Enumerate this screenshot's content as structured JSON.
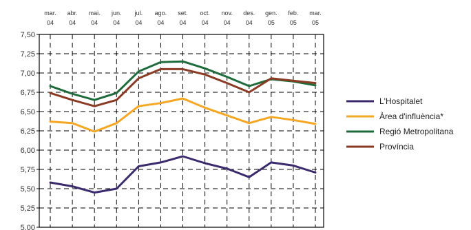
{
  "chart_data": {
    "type": "line",
    "title": "",
    "xlabel": "",
    "ylabel": "",
    "ylim": [
      5.0,
      7.5
    ],
    "yticks": [
      "7,50",
      "7,25",
      "7,00",
      "6,75",
      "6,50",
      "6,25",
      "6,00",
      "5,75",
      "5,50",
      "5,25",
      "5,00"
    ],
    "ytick_values": [
      7.5,
      7.25,
      7.0,
      6.75,
      6.5,
      6.25,
      6.0,
      5.75,
      5.5,
      5.25,
      5.0
    ],
    "categories": [
      [
        "mar.",
        "04"
      ],
      [
        "abr.",
        "04"
      ],
      [
        "mai.",
        "04"
      ],
      [
        "jun.",
        "04"
      ],
      [
        "jul.",
        "04"
      ],
      [
        "ago.",
        "04"
      ],
      [
        "set.",
        "04"
      ],
      [
        "oct.",
        "04"
      ],
      [
        "nov.",
        "04"
      ],
      [
        "des.",
        "04"
      ],
      [
        "gen.",
        "05"
      ],
      [
        "feb.",
        "05"
      ],
      [
        "mar.",
        "05"
      ]
    ],
    "grid": true,
    "legend_position": "right",
    "series": [
      {
        "name": "L'Hospitalet",
        "color": "#3c2a6e",
        "values": [
          5.58,
          5.53,
          5.45,
          5.5,
          5.79,
          5.84,
          5.92,
          5.83,
          5.76,
          5.65,
          5.84,
          5.8,
          5.71
        ]
      },
      {
        "name": "Àrea d'influència*",
        "color": "#f5a623",
        "values": [
          6.37,
          6.35,
          6.24,
          6.35,
          6.57,
          6.61,
          6.67,
          6.55,
          6.45,
          6.35,
          6.43,
          6.39,
          6.34
        ]
      },
      {
        "name": "Regió Metropolitana",
        "color": "#1e6b3c",
        "values": [
          6.83,
          6.73,
          6.65,
          6.74,
          7.02,
          7.14,
          7.15,
          7.06,
          6.95,
          6.83,
          6.92,
          6.89,
          6.84
        ]
      },
      {
        "name": "Província",
        "color": "#8b3a24",
        "values": [
          6.74,
          6.65,
          6.57,
          6.65,
          6.93,
          7.05,
          7.05,
          6.98,
          6.87,
          6.75,
          6.93,
          6.9,
          6.87
        ]
      }
    ]
  }
}
